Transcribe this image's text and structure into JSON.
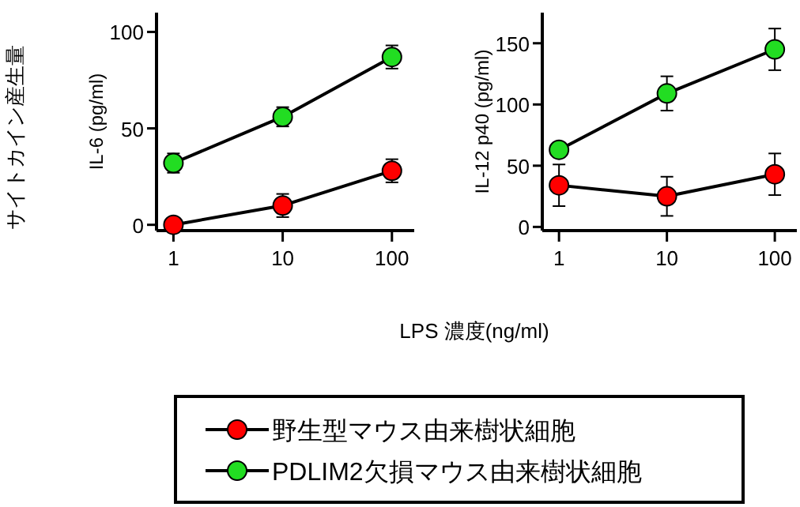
{
  "chart_data": [
    {
      "type": "line",
      "xlabel": "LPS 濃度(ng/ml)",
      "ylabel": "IL-6 (pg/ml)",
      "annotations": [
        "サイトカイン産生量"
      ],
      "log": "x",
      "x": [
        1,
        10,
        100
      ],
      "xlim": [
        0.7,
        160
      ],
      "xticks": [
        1,
        10,
        100
      ],
      "ylim": [
        -3,
        110
      ],
      "yticks": [
        0,
        50,
        100
      ],
      "marker": "circle",
      "legend": "bottom",
      "series": [
        {
          "name": "野生型マウス由来樹状細胞",
          "color": "#ff0000",
          "values": [
            0,
            10,
            28
          ],
          "errors": [
            null,
            6,
            6
          ]
        },
        {
          "name": "PDLIM2欠損マウス由来樹状細胞",
          "color": "#22dd22",
          "values": [
            32,
            56,
            87
          ],
          "errors": [
            5,
            5,
            6
          ]
        }
      ]
    },
    {
      "type": "line",
      "ylabel": "IL-12 p40 (pg/ml)",
      "log": "x",
      "x": [
        1,
        10,
        100
      ],
      "xlim": [
        0.7,
        160
      ],
      "xticks": [
        1,
        10,
        100
      ],
      "ylim": [
        -3,
        175
      ],
      "yticks": [
        0,
        50,
        100,
        150
      ],
      "marker": "circle",
      "series": [
        {
          "color": "#ff0000",
          "values": [
            34,
            25,
            43
          ],
          "errors": [
            17,
            16,
            17
          ]
        },
        {
          "color": "#22dd22",
          "values": [
            63,
            109,
            145
          ],
          "errors": [
            6,
            14,
            17
          ]
        }
      ]
    }
  ]
}
